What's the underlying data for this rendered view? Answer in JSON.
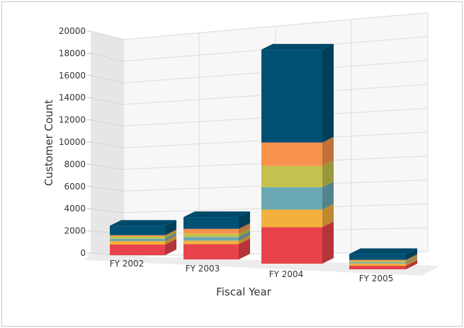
{
  "chart_data": {
    "type": "bar",
    "stacked": true,
    "three_d": true,
    "title": "",
    "xlabel": "Fiscal Year",
    "ylabel": "Customer Count",
    "ylim": [
      0,
      20000
    ],
    "yticks": [
      0,
      2000,
      4000,
      6000,
      8000,
      10000,
      12000,
      14000,
      16000,
      18000,
      20000
    ],
    "grid": true,
    "categories": [
      "FY 2002",
      "FY 2003",
      "FY 2004",
      "FY 2005"
    ],
    "series": [
      {
        "color": "#e8434a",
        "values": [
          900,
          1300,
          3100,
          300
        ]
      },
      {
        "color": "#f4b03e",
        "values": [
          300,
          300,
          1500,
          200
        ]
      },
      {
        "color": "#6aa9b4",
        "values": [
          200,
          300,
          1900,
          100
        ]
      },
      {
        "color": "#c4c24e",
        "values": [
          200,
          300,
          1800,
          100
        ]
      },
      {
        "color": "#f7924c",
        "values": [
          100,
          400,
          2000,
          100
        ]
      },
      {
        "color": "#005174",
        "values": [
          800,
          1000,
          7900,
          500
        ]
      }
    ]
  }
}
